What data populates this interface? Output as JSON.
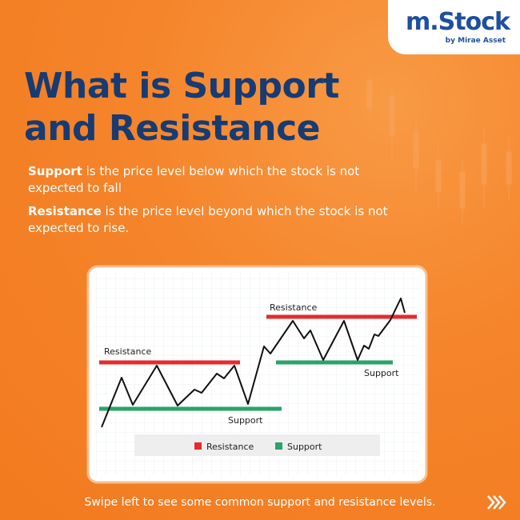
{
  "logo": {
    "brand": "m.Stock",
    "tagline": "by Mirae Asset"
  },
  "title_lines": [
    "What is Support",
    "and Resistance"
  ],
  "definitions": [
    {
      "term": "Support",
      "text": "is the price level below which the stock is not expected to fall"
    },
    {
      "term": "Resistance",
      "text": "is the price level beyond which the stock is not expected  to rise."
    }
  ],
  "illustration": {
    "upper_resistance_label": "Resistance",
    "lower_resistance_label": "Resistance",
    "upper_support_label": "Support",
    "lower_support_label": "Support",
    "legend": [
      "Resistance",
      "Support"
    ]
  },
  "footer": "Swipe left to see some common support and resistance levels."
}
